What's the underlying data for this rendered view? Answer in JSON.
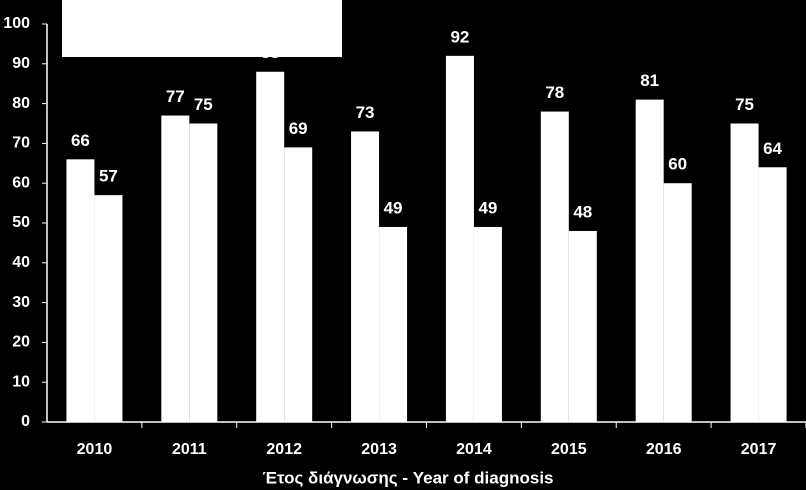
{
  "chart_data": {
    "type": "bar",
    "x_label": "Έτος διάγνωσης - Year of diagnosis",
    "categories": [
      "2010",
      "2011",
      "2012",
      "2013",
      "2014",
      "2015",
      "2016",
      "2017"
    ],
    "series": [
      {
        "color": "#ffffff",
        "values": [
          66,
          77,
          88,
          73,
          92,
          78,
          81,
          75
        ]
      },
      {
        "color": "#ffffff",
        "values": [
          57,
          75,
          69,
          49,
          49,
          48,
          60,
          64
        ]
      }
    ],
    "ylim": [
      0,
      100
    ],
    "yticks": [
      0,
      10,
      20,
      30,
      40,
      50,
      60,
      70,
      80,
      90,
      100
    ]
  }
}
